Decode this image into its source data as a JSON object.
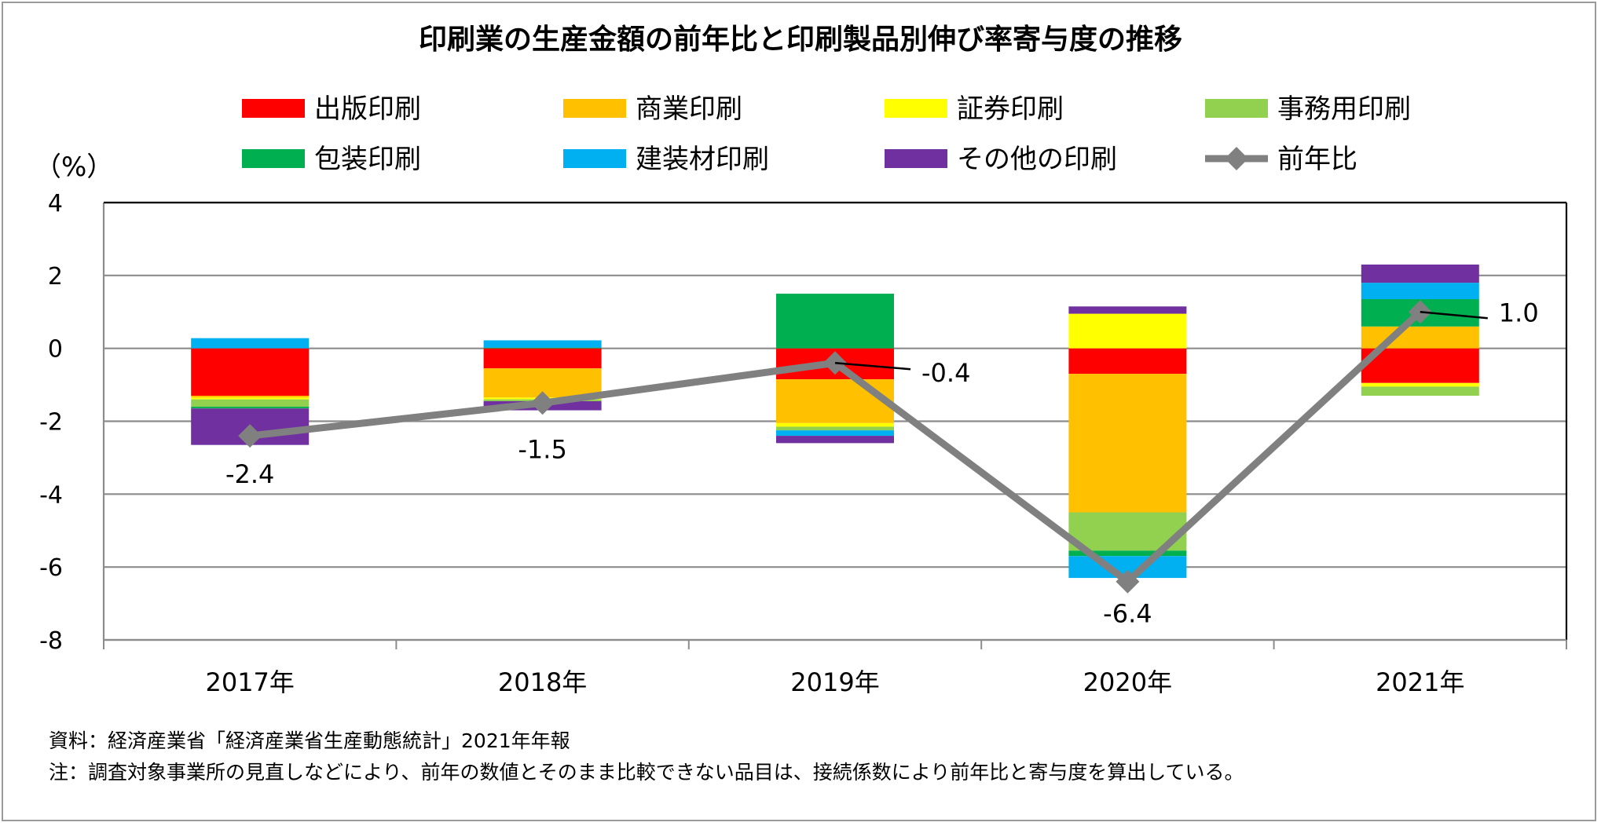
{
  "chart_data": {
    "type": "bar",
    "stacked": true,
    "title": "印刷業の生産金額の前年比と印刷製品別伸び率寄与度の推移",
    "unit_label": "（%）",
    "ylim": [
      -8,
      4
    ],
    "yticks": [
      "4",
      "2",
      "0",
      "-2",
      "-4",
      "-6",
      "-8"
    ],
    "categories": [
      "2017年",
      "2018年",
      "2019年",
      "2020年",
      "2021年"
    ],
    "series": [
      {
        "name": "出版印刷",
        "color": "#FF0000",
        "values": [
          -1.3,
          -0.55,
          -0.85,
          -0.7,
          -0.95
        ]
      },
      {
        "name": "商業印刷",
        "color": "#FFC000",
        "values": [
          -0.05,
          -0.8,
          -1.2,
          -3.8,
          0.6
        ]
      },
      {
        "name": "証券印刷",
        "color": "#FFFF00",
        "values": [
          -0.05,
          -0.05,
          -0.1,
          0.95,
          -0.1
        ]
      },
      {
        "name": "事務用印刷",
        "color": "#92D050",
        "values": [
          -0.2,
          -0.05,
          -0.1,
          -1.05,
          -0.25
        ]
      },
      {
        "name": "包装印刷",
        "color": "#00B050",
        "values": [
          -0.05,
          0.02,
          1.5,
          -0.15,
          0.75
        ]
      },
      {
        "name": "建装材印刷",
        "color": "#00B0F0",
        "values": [
          0.28,
          0.2,
          -0.15,
          -0.6,
          0.45
        ]
      },
      {
        "name": "その他の印刷",
        "color": "#7030A0",
        "values": [
          -1.0,
          -0.25,
          -0.2,
          0.2,
          0.5
        ]
      }
    ],
    "line_series": {
      "name": "前年比",
      "color": "#808080",
      "values": [
        -2.4,
        -1.5,
        -0.4,
        -6.4,
        1.0
      ],
      "labels": [
        "-2.4",
        "-1.5",
        "-0.4",
        "-6.4",
        "1.0"
      ]
    }
  },
  "notes": {
    "source": "資料：経済産業省「経済産業省生産動態統計」2021年年報",
    "note": "注：調査対象事業所の見直しなどにより、前年の数値とそのまま比較できない品目は、接続係数により前年比と寄与度を算出している。"
  }
}
